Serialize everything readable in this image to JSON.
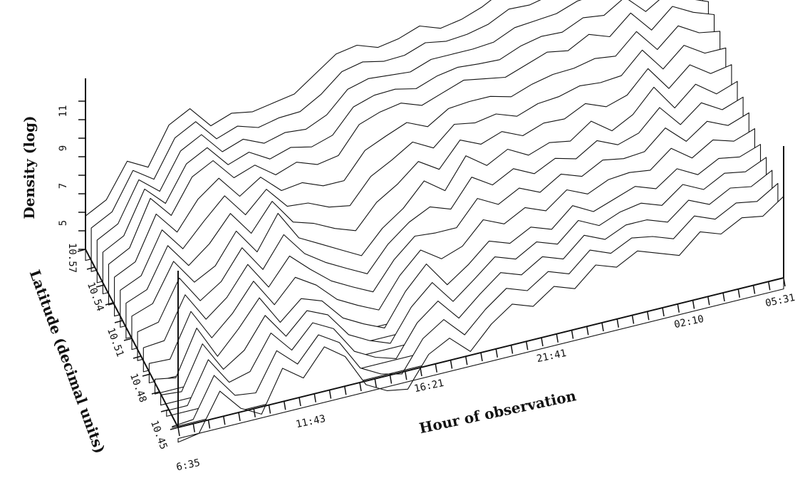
{
  "chart_data": {
    "type": "surface3d",
    "xlabel": "Hour of observation",
    "ylabel": "Latitude (decimal units)",
    "zlabel": "Density (log)",
    "x_ticks": [
      "6:35",
      "11:43",
      "16:21",
      "21:41",
      "02:10",
      "05:31"
    ],
    "y_ticks": [
      "10.45",
      "10.48",
      "10.51",
      "10.54",
      "10.57"
    ],
    "z_ticks": [
      "5",
      "7",
      "9",
      "11"
    ],
    "zlim": [
      4,
      12
    ],
    "grid": false,
    "series": [
      {
        "latitude": 10.45,
        "values": [
          3.2,
          3.4,
          5.4,
          4.2,
          3.6,
          5.8,
          5.0,
          6.4,
          5.6,
          3.8,
          3.2,
          3.0,
          4.6,
          5.2,
          4.2,
          5.4,
          6.2,
          5.8,
          6.6,
          6.2,
          7.2,
          6.8,
          7.4,
          7.0,
          6.6,
          7.6,
          7.2,
          7.8,
          7.6,
          8.4
        ]
      },
      {
        "latitude": 10.48,
        "values": [
          4.2,
          4.0,
          6.4,
          4.6,
          5.8,
          7.2,
          5.6,
          6.6,
          6.2,
          5.0,
          4.4,
          3.9,
          5.6,
          6.8,
          5.4,
          6.2,
          7.2,
          6.8,
          7.4,
          7.0,
          8.0,
          7.4,
          7.8,
          8.2,
          7.8,
          8.6,
          8.0,
          8.6,
          8.4,
          8.8
        ]
      },
      {
        "latitude": 10.51,
        "values": [
          5.2,
          5.6,
          7.6,
          6.2,
          6.8,
          8.4,
          7.0,
          8.8,
          7.2,
          6.6,
          6.0,
          5.4,
          6.6,
          7.4,
          8.6,
          7.8,
          9.4,
          8.6,
          9.2,
          8.6,
          9.0,
          8.8,
          9.6,
          8.8,
          9.4,
          10.6,
          9.2,
          10.2,
          9.4,
          9.8
        ]
      },
      {
        "latitude": 10.54,
        "values": [
          5.6,
          6.2,
          8.6,
          7.4,
          9.2,
          9.8,
          8.6,
          9.0,
          8.2,
          8.6,
          8.2,
          8.4,
          9.8,
          10.2,
          10.4,
          10.0,
          10.4,
          10.8,
          10.6,
          10.4,
          10.8,
          11.2,
          11.0,
          11.6,
          11.2,
          12.2,
          11.0,
          12.0,
          11.4,
          11.0
        ]
      },
      {
        "latitude": 10.57,
        "values": [
          5.8,
          6.4,
          8.2,
          7.6,
          9.6,
          10.2,
          9.0,
          9.4,
          9.2,
          9.4,
          9.6,
          10.4,
          11.2,
          11.4,
          11.0,
          11.2,
          11.6,
          11.2,
          11.4,
          11.8,
          12.4,
          12.2,
          12.6,
          12.8,
          13.4,
          13.2,
          12.6,
          12.4,
          12.0,
          11.4
        ]
      }
    ]
  }
}
